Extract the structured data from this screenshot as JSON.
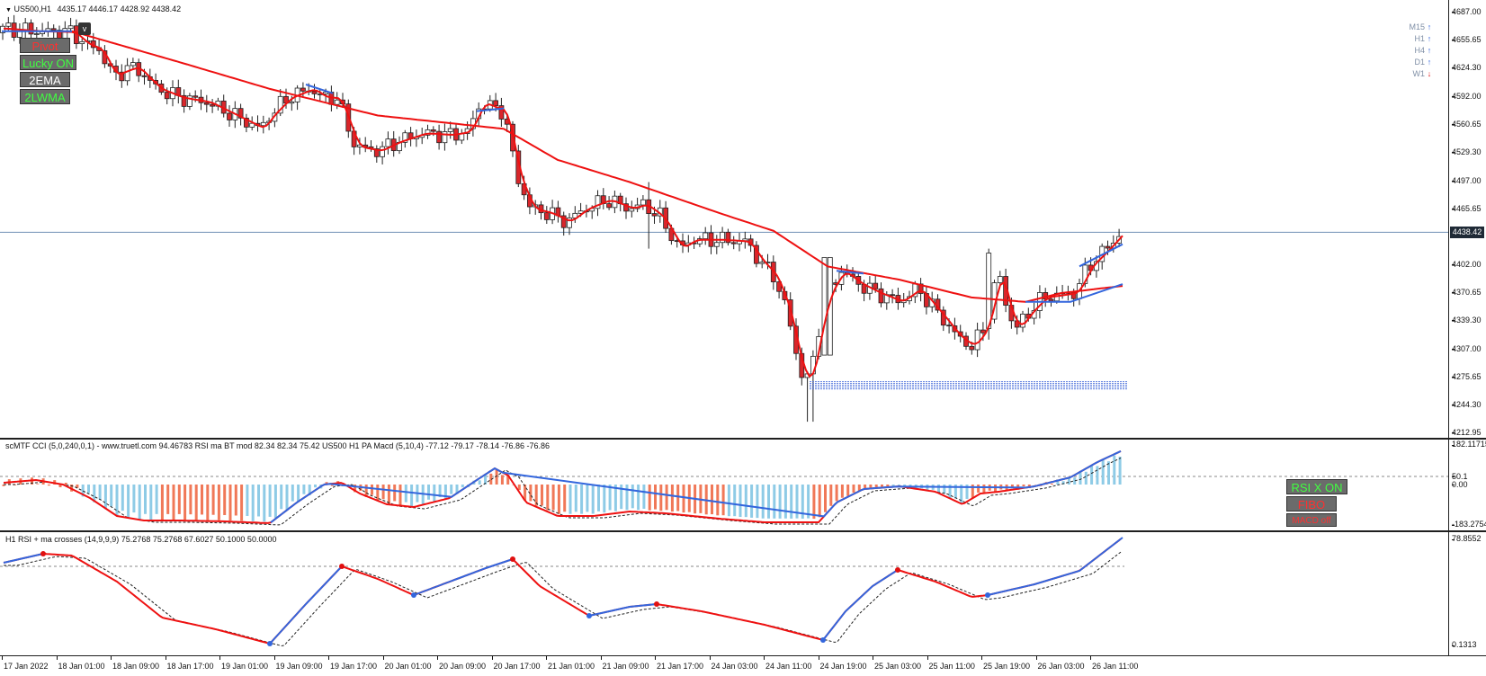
{
  "main": {
    "header": {
      "symbol": "US500,H1",
      "ohlc": "4435.17 4446.17 4428.92 4438.42"
    },
    "price_axis": [
      "4687.00",
      "4655.65",
      "4624.30",
      "4592.00",
      "4560.65",
      "4529.30",
      "4497.00",
      "4465.65",
      "4402.00",
      "4370.65",
      "4339.30",
      "4307.00",
      "4275.65",
      "4244.30",
      "4212.95"
    ],
    "price_axis_values": [
      4687.0,
      4655.65,
      4624.3,
      4592.0,
      4560.65,
      4529.3,
      4497.0,
      4465.65,
      4402.0,
      4370.65,
      4339.3,
      4307.0,
      4275.65,
      4244.3,
      4212.95
    ],
    "current_price": "4438.42",
    "current_price_value": 4438.42,
    "buttons": {
      "pivot": "Pivot",
      "lucky": "Lucky ON",
      "ema": "2EMA",
      "lwma": "2LWMA",
      "v": "v"
    },
    "timeframes": [
      {
        "label": "M15",
        "dir": "up"
      },
      {
        "label": "H1",
        "dir": "up"
      },
      {
        "label": "H4",
        "dir": "up"
      },
      {
        "label": "D1",
        "dir": "up"
      },
      {
        "label": "W1",
        "dir": "down"
      }
    ]
  },
  "osc1": {
    "header": "scMTF CCI (5,0,240,0,1) - www.truetl.com 94.46783  RSI ma BT mod 82.34 82.34 75.42  US500 H1 PA Macd (5,10,4) -77.12 -79.17 -78.14 -76.86 -76.86",
    "axis_top": "182.11715",
    "axis_mid": "50.1",
    "axis_zero": "0.00",
    "axis_bottom": "-183.2754",
    "buttons": {
      "rsi": "RSI X ON",
      "fibo": "FIBO",
      "macd": "MACD off"
    }
  },
  "osc2": {
    "header": "H1 RSI + ma crosses (14,9,9,9) 75.2768 75.2768 67.6027 50.1000 50.0000",
    "axis_top": "78.8552",
    "axis_bottom": "0.1313"
  },
  "time_axis": [
    "17 Jan 2022",
    "18 Jan 01:00",
    "18 Jan 09:00",
    "18 Jan 17:00",
    "19 Jan 01:00",
    "19 Jan 09:00",
    "19 Jan 17:00",
    "20 Jan 01:00",
    "20 Jan 09:00",
    "20 Jan 17:00",
    "21 Jan 01:00",
    "21 Jan 09:00",
    "21 Jan 17:00",
    "24 Jan 03:00",
    "24 Jan 11:00",
    "24 Jan 19:00",
    "25 Jan 03:00",
    "25 Jan 11:00",
    "25 Jan 19:00",
    "26 Jan 03:00",
    "26 Jan 11:00"
  ],
  "colors": {
    "bull": "#ffffff",
    "bear": "#d9262b",
    "ma_red": "#ee1111",
    "ma_blue": "#3366dd",
    "hist_red": "#f07858",
    "hist_blue": "#8ecbe6",
    "button_red": "#ff3030",
    "button_green": "#40ff40",
    "button_white": "#ffffff"
  }
}
